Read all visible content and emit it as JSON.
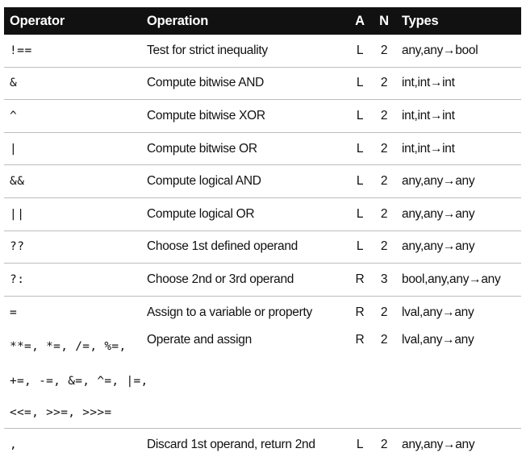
{
  "table": {
    "headers": {
      "operator": "Operator",
      "operation": "Operation",
      "a": "A",
      "n": "N",
      "types": "Types"
    },
    "rows": [
      {
        "operator": "!==",
        "operation": "Test for strict inequality",
        "a": "L",
        "n": "2",
        "types": "any,any→bool"
      },
      {
        "operator": "&",
        "operation": "Compute bitwise AND",
        "a": "L",
        "n": "2",
        "types": "int,int→int"
      },
      {
        "operator": "^",
        "operation": "Compute bitwise XOR",
        "a": "L",
        "n": "2",
        "types": "int,int→int"
      },
      {
        "operator": "|",
        "operation": "Compute bitwise OR",
        "a": "L",
        "n": "2",
        "types": "int,int→int"
      },
      {
        "operator": "&&",
        "operation": "Compute logical AND",
        "a": "L",
        "n": "2",
        "types": "any,any→any"
      },
      {
        "operator": "||",
        "operation": "Compute logical OR",
        "a": "L",
        "n": "2",
        "types": "any,any→any"
      },
      {
        "operator": "??",
        "operation": "Choose 1st defined operand",
        "a": "L",
        "n": "2",
        "types": "any,any→any"
      },
      {
        "operator": "?:",
        "operation": "Choose 2nd or 3rd operand",
        "a": "R",
        "n": "3",
        "types": "bool,any,any→any"
      },
      {
        "operator": "=",
        "operation": "Assign to a variable or property",
        "a": "R",
        "n": "2",
        "types": "lval,any→any"
      },
      {
        "operator_lines": [
          "**=, *=, /=, %=,",
          "+=, -=, &=, ^=, |=,",
          "<<=, >>=, >>>="
        ],
        "operation": "Operate and assign",
        "a": "R",
        "n": "2",
        "types": "lval,any→any"
      },
      {
        "operator": ",",
        "operation": "Discard 1st operand, return 2nd",
        "a": "L",
        "n": "2",
        "types": "any,any→any"
      }
    ]
  }
}
